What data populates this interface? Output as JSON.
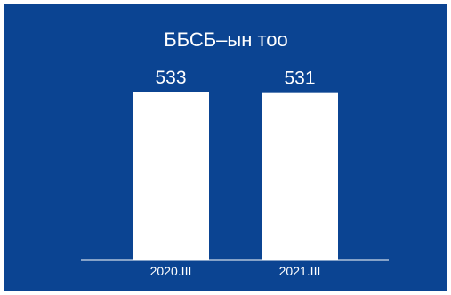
{
  "chart_data": {
    "type": "bar",
    "title": "ББСБ–ын тоо",
    "categories": [
      "2020.III",
      "2021.III"
    ],
    "values": [
      533,
      531
    ],
    "ylim": [
      0,
      640
    ],
    "grid": false,
    "colors": {
      "background": "#0b4492",
      "bar": "#ffffff",
      "text": "#ffffff",
      "axis": "#ffffff"
    }
  }
}
